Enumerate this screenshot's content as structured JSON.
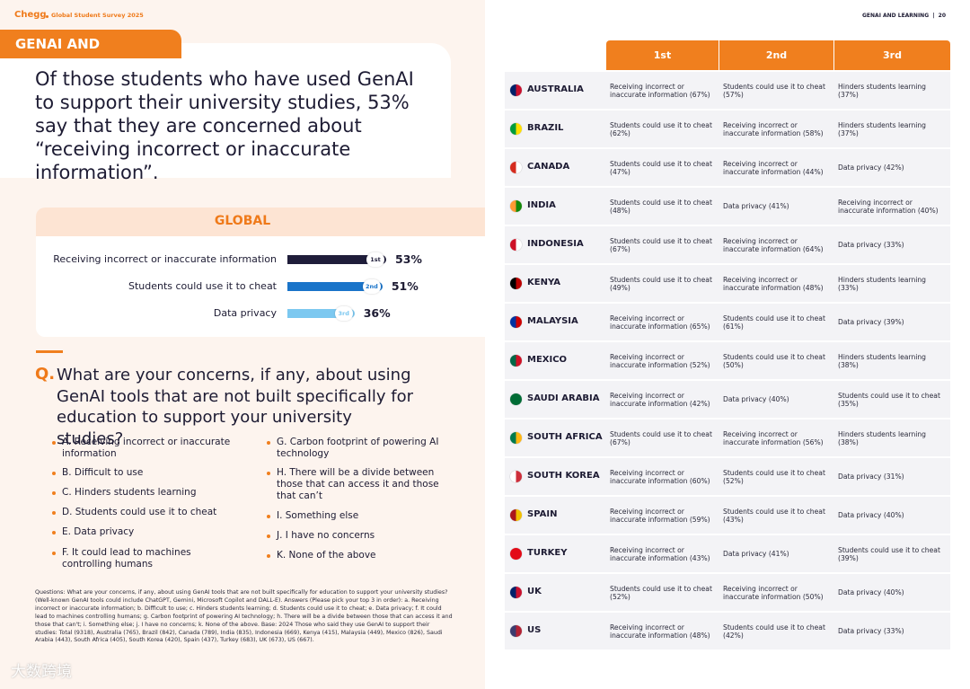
{
  "left_header": {
    "brand": "Chegg",
    "title": "Global Student Survey 2025"
  },
  "section_tag": "GENAI AND LEARNING",
  "headline": "Of those students who have used GenAI to support their university studies, 53% say that they are concerned about “receiving incorrect or inaccurate information”.",
  "global": {
    "title": "GLOBAL",
    "bars": [
      {
        "label": "Receiving incorrect or inaccurate information",
        "rank": "1st",
        "value": 53,
        "value_label": "53%",
        "color": "#1f1d3a"
      },
      {
        "label": "Students could use it to cheat",
        "rank": "2nd",
        "value": 51,
        "value_label": "51%",
        "color": "#1a74c9"
      },
      {
        "label": "Data privacy",
        "rank": "3rd",
        "value": 36,
        "value_label": "36%",
        "color": "#7cc8f0"
      }
    ]
  },
  "question": {
    "label": "Q.",
    "text": "What are your concerns, if any, about using GenAI tools that are not built specifically for education to support your university studies?",
    "options": [
      [
        "A. Receiving incorrect or inaccurate information",
        "B. Difficult to use",
        "C. Hinders students learning",
        "D. Students could use it to cheat",
        "E. Data privacy",
        "F. It could lead to machines controlling humans"
      ],
      [
        "G. Carbon footprint of powering AI technology",
        "H. There will be a divide between those that can access it and those that can’t",
        "I. Something else",
        "J. I have no concerns",
        "K. None of the above"
      ]
    ]
  },
  "footnote": "Questions: What are your concerns, if any, about using GenAI tools that are  not built specifically for education to support your university studies? (Well-known GenAI tools could include ChatGPT, Gemini, Microsoft Copilot and DALL-E). Answers (Please pick your top 3 in order): a. Receiving incorrect or inaccurate information; b. Difficult to use; c. Hinders students learning; d. Students could use it to cheat; e. Data privacy; f. It could lead to machines controlling humans; g. Carbon footprint of powering AI technology; h. There will be a divide between those that can access it and those that can't; i. Something else; j. I have no concerns; k. None of the above. Base: 2024 Those who said they use GenAI to support their studies: Total (9318), Australia (765), Brazil (842), Canada (789), India (835), Indonesia (669), Kenya (415), Malaysia (449), Mexico (826), Saudi Arabia (443), South Africa (405), South Korea (420), Spain (437), Turkey (683), UK (673), US (667).",
  "watermark": "大数跨境",
  "right_header": "GENAI AND LEARNING  |  20",
  "table": {
    "columns": [
      "1st",
      "2nd",
      "3rd"
    ],
    "rows": [
      [
        "AUSTRALIA",
        "Receiving incorrect or inaccurate information (67%)",
        "Students could use it to cheat (57%)",
        "Hinders students learning (37%)"
      ],
      [
        "BRAZIL",
        "Students could use it to cheat (62%)",
        "Receiving incorrect or inaccurate information (58%)",
        "Hinders students learning (37%)"
      ],
      [
        "CANADA",
        "Students could use it to cheat (47%)",
        "Receiving incorrect or inaccurate information (44%)",
        "Data privacy (42%)"
      ],
      [
        "INDIA",
        "Students could use it to cheat (48%)",
        "Data privacy (41%)",
        "Receiving incorrect or inaccurate information (40%)"
      ],
      [
        "INDONESIA",
        "Students could use it to cheat (67%)",
        "Receiving incorrect or inaccurate information (64%)",
        "Data privacy (33%)"
      ],
      [
        "KENYA",
        "Students could use it to cheat (49%)",
        "Receiving incorrect or inaccurate information (48%)",
        "Hinders students learning (33%)"
      ],
      [
        "MALAYSIA",
        "Receiving incorrect or inaccurate information (65%)",
        "Students could use it to cheat (61%)",
        "Data privacy (39%)"
      ],
      [
        "MEXICO",
        "Receiving incorrect or inaccurate information (52%)",
        "Students could use it to cheat (50%)",
        "Hinders students learning (38%)"
      ],
      [
        "SAUDI ARABIA",
        "Receiving incorrect or inaccurate information (42%)",
        "Data privacy (40%)",
        "Students could use it to cheat (35%)"
      ],
      [
        "SOUTH AFRICA",
        "Students could use it to cheat (67%)",
        "Receiving incorrect or inaccurate information (56%)",
        "Hinders students learning (38%)"
      ],
      [
        "SOUTH KOREA",
        "Receiving incorrect or inaccurate information (60%)",
        "Students could use it to cheat (52%)",
        "Data privacy (31%)"
      ],
      [
        "SPAIN",
        "Receiving incorrect or inaccurate information (59%)",
        "Students could use it to cheat (43%)",
        "Data privacy (40%)"
      ],
      [
        "TURKEY",
        "Receiving incorrect or inaccurate information (43%)",
        "Data privacy (41%)",
        "Students could use it to cheat (39%)"
      ],
      [
        "UK",
        "Students could use it to cheat (52%)",
        "Receiving incorrect or inaccurate information (50%)",
        "Data privacy (40%)"
      ],
      [
        "US",
        "Receiving incorrect or inaccurate information (48%)",
        "Students could use it to cheat (42%)",
        "Data privacy (33%)"
      ]
    ]
  }
}
